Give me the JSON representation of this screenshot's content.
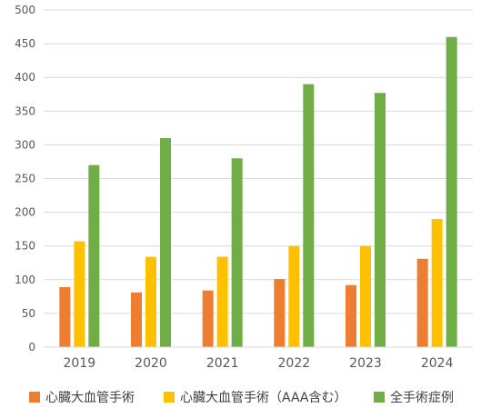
{
  "chart_data": {
    "type": "bar",
    "categories": [
      "2019",
      "2020",
      "2021",
      "2022",
      "2023",
      "2024"
    ],
    "series": [
      {
        "name": "心臓大血管手術",
        "color": "#ED7D31",
        "values": [
          89,
          81,
          84,
          101,
          92,
          131
        ]
      },
      {
        "name": "心臓大血管手術（AAA含む）",
        "color": "#FFC000",
        "values": [
          157,
          134,
          134,
          150,
          150,
          190
        ]
      },
      {
        "name": "全手術症例",
        "color": "#70AD47",
        "values": [
          270,
          310,
          280,
          390,
          377,
          460
        ]
      }
    ],
    "ylim": [
      0,
      500
    ],
    "yticks": [
      0,
      50,
      100,
      150,
      200,
      250,
      300,
      350,
      400,
      450,
      500
    ],
    "grid": true,
    "legend_position": "bottom"
  }
}
